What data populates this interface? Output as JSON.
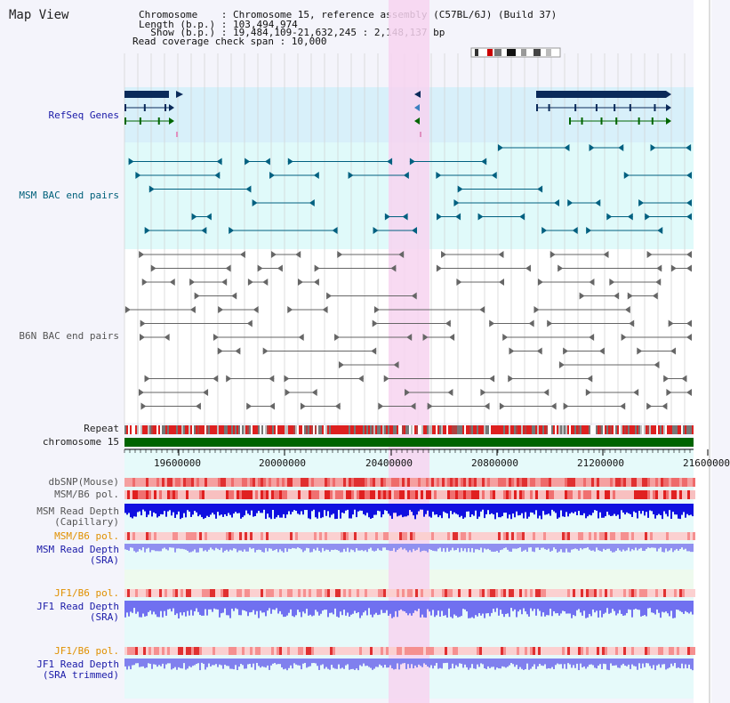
{
  "header": {
    "app_title": "Map View",
    "chromosome_line": "Chromosome    : Chromosome 15, reference assembly (C57BL/6J) (Build 37)",
    "length_line": "Length (b.p.) : 103,494,974",
    "show_line": "  Show (b.p.) : 19,484,109-21,632,245 : 2,148,137 bp",
    "coverage_line": "Read coverage check span : 10,000"
  },
  "tracks": {
    "refseq": "RefSeq Genes",
    "msm_bac": "MSM BAC end pairs",
    "b6n_bac": "B6N BAC end pairs",
    "repeat": "Repeat",
    "chromosome": "chromosome 15",
    "dbsnp": "dbSNP(Mouse)",
    "msm_b6_pol": "MSM/B6 pol.",
    "msm_read_depth_cap_1": "MSM Read Depth",
    "msm_read_depth_cap_2": "(Capillary)",
    "msm_b6_pol_2": "MSM/B6 pol.",
    "msm_read_depth_sra_1": "MSM Read Depth",
    "msm_read_depth_sra_2": "(SRA)",
    "jf1_b6_pol": "JF1/B6 pol.",
    "jf1_read_depth_sra_1": "JF1 Read Depth",
    "jf1_read_depth_sra_2": "(SRA)",
    "jf1_b6_pol_2": "JF1/B6 pol.",
    "jf1_read_depth_trim_1": "JF1 Read Depth",
    "jf1_read_depth_trim_2": "(SRA trimmed)"
  },
  "axis": {
    "ticks": [
      "19600000",
      "20000000",
      "20400000",
      "20800000",
      "21200000",
      "21600000"
    ]
  },
  "colors": {
    "highlight": "#f7d4f0",
    "refseq_bg": "#d8f0fa",
    "bac_msm_bg": "#e0fafa",
    "gene_dark": "#0a2a5a",
    "msm_feature": "#006080",
    "b6n_feature": "#666666",
    "chromosome_bar": "#006400",
    "repeat_red": "#dd2020",
    "depth_blue": "#1010e0",
    "depth_light": "#7070f0"
  }
}
